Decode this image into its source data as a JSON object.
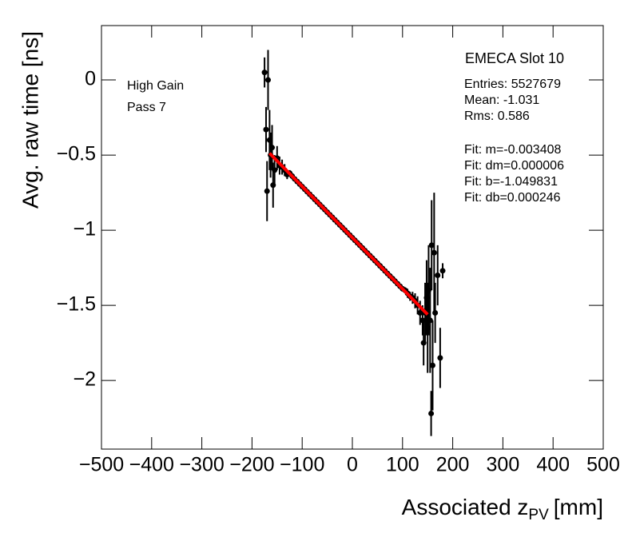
{
  "chart_data": {
    "type": "errorbar",
    "y_label": "Avg. raw time [ns]",
    "x_label": {
      "main": "Associated z",
      "sub": "PV",
      "unit": "[mm]"
    },
    "annotations": [
      "High Gain",
      "Pass 7"
    ],
    "stats_title": "EMECA Slot 10",
    "stats": [
      "Entries: 5527679",
      "Mean: -1.031",
      "Rms: 0.586",
      "Fit: m=-0.003408",
      "Fit: dm=0.000006",
      "Fit: b=-1.049831",
      "Fit: db=0.000246"
    ],
    "xlim": [
      -500,
      500
    ],
    "ylim": [
      -2.457,
      0.362
    ],
    "xticks": [
      {
        "value": -500,
        "label": "−500"
      },
      {
        "value": -400,
        "label": "−400"
      },
      {
        "value": -300,
        "label": "−300"
      },
      {
        "value": -200,
        "label": "−200"
      },
      {
        "value": -100,
        "label": "−100"
      },
      0,
      100,
      200,
      300,
      400,
      500
    ],
    "yticks": [
      0,
      {
        "value": -0.5,
        "label": "−0.5"
      },
      {
        "value": -1,
        "label": "−1"
      },
      {
        "value": -1.5,
        "label": "−1.5"
      },
      {
        "value": -2,
        "label": "−2"
      }
    ],
    "color": "#000000",
    "x": [
      -175,
      -172,
      -170,
      -168,
      -165,
      -163,
      -160,
      -158,
      -155,
      -150,
      -145,
      -140,
      -135,
      -130,
      -125,
      -120,
      -115,
      -110,
      -105,
      -100,
      -95,
      -90,
      -85,
      -80,
      -75,
      -70,
      -65,
      -60,
      -55,
      -50,
      -45,
      -40,
      -35,
      -30,
      -25,
      -20,
      -15,
      -10,
      -5,
      0,
      5,
      10,
      15,
      20,
      25,
      30,
      35,
      40,
      45,
      50,
      55,
      60,
      65,
      70,
      75,
      80,
      85,
      90,
      95,
      100,
      105,
      110,
      115,
      120,
      125,
      130,
      135,
      140,
      142,
      145,
      148,
      150,
      152,
      155,
      157,
      158,
      160,
      163,
      165,
      170,
      175,
      180
    ],
    "values": [
      0.05,
      -0.33,
      -0.74,
      0.0,
      -0.4,
      -0.5,
      -0.45,
      -0.7,
      -0.6,
      -0.52,
      -0.57,
      -0.58,
      -0.6,
      -0.63,
      -0.62,
      -0.64,
      -0.659,
      -0.676,
      -0.693,
      -0.71,
      -0.727,
      -0.744,
      -0.761,
      -0.778,
      -0.795,
      -0.812,
      -0.829,
      -0.846,
      -0.863,
      -0.88,
      -0.897,
      -0.914,
      -0.931,
      -0.948,
      -0.965,
      -0.982,
      -0.999,
      -1.016,
      -1.033,
      -1.05,
      -1.067,
      -1.084,
      -1.101,
      -1.118,
      -1.135,
      -1.152,
      -1.169,
      -1.186,
      -1.203,
      -1.22,
      -1.237,
      -1.254,
      -1.271,
      -1.288,
      -1.305,
      -1.322,
      -1.339,
      -1.356,
      -1.373,
      -1.39,
      -1.4,
      -1.42,
      -1.44,
      -1.45,
      -1.47,
      -1.5,
      -1.55,
      -1.6,
      -1.75,
      -1.55,
      -1.45,
      -1.65,
      -1.4,
      -1.6,
      -2.22,
      -1.1,
      -1.9,
      -1.15,
      -1.55,
      -1.3,
      -1.85,
      -1.27
    ],
    "errors": [
      0.1,
      0.15,
      0.2,
      0.2,
      0.2,
      0.15,
      0.15,
      0.15,
      0.1,
      0.08,
      0.06,
      0.05,
      0.04,
      0.03,
      0.02,
      0.02,
      0.01,
      0.01,
      0.01,
      0.01,
      0.01,
      0.01,
      0.01,
      0.01,
      0.01,
      0.01,
      0.01,
      0.01,
      0.01,
      0.01,
      0.01,
      0.01,
      0.01,
      0.01,
      0.01,
      0.01,
      0.01,
      0.01,
      0.01,
      0.01,
      0.01,
      0.01,
      0.01,
      0.01,
      0.01,
      0.01,
      0.01,
      0.01,
      0.01,
      0.01,
      0.01,
      0.01,
      0.01,
      0.01,
      0.01,
      0.01,
      0.01,
      0.01,
      0.01,
      0.01,
      0.02,
      0.03,
      0.03,
      0.04,
      0.05,
      0.06,
      0.08,
      0.1,
      0.15,
      0.2,
      0.25,
      0.3,
      0.3,
      0.35,
      0.15,
      0.3,
      0.3,
      0.4,
      0.2,
      0.2,
      0.2,
      0.05
    ],
    "fit": {
      "x": [
        -165,
        150
      ],
      "values": [
        -0.4875,
        -1.561
      ],
      "color": "#ff0000"
    }
  }
}
